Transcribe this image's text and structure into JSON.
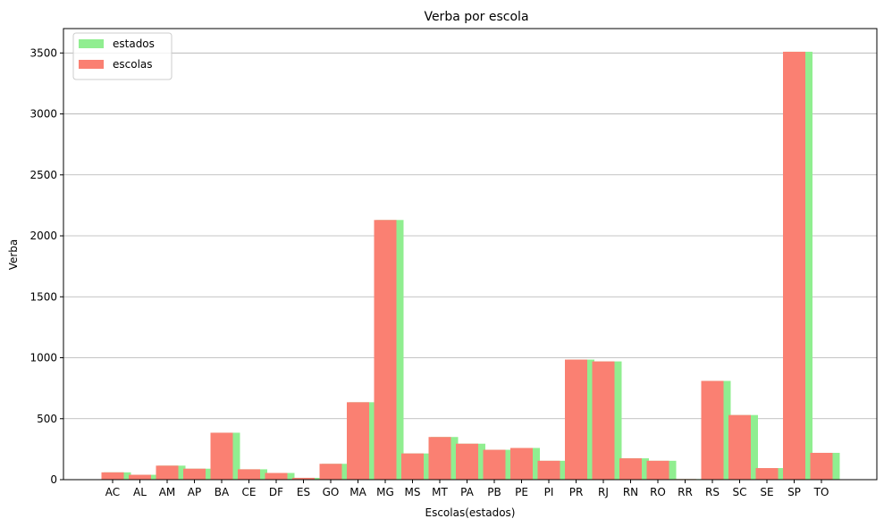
{
  "chart_data": {
    "type": "bar",
    "title": "Verba por escola",
    "xlabel": "Escolas(estados)",
    "ylabel": "Verba",
    "ylim": [
      0,
      3700
    ],
    "yticks": [
      0,
      500,
      1000,
      1500,
      2000,
      2500,
      3000,
      3500
    ],
    "grid": "y",
    "legend": "top-left",
    "categories": [
      "AC",
      "AL",
      "AM",
      "AP",
      "BA",
      "CE",
      "DF",
      "ES",
      "GO",
      "MA",
      "MG",
      "MS",
      "MT",
      "PA",
      "PB",
      "PE",
      "PI",
      "PR",
      "RJ",
      "RN",
      "RO",
      "RR",
      "RS",
      "SC",
      "SE",
      "SP",
      "TO"
    ],
    "series": [
      {
        "name": "estados",
        "color": "#90ee90",
        "values": [
          60,
          40,
          115,
          90,
          385,
          85,
          55,
          15,
          130,
          635,
          2130,
          215,
          350,
          295,
          245,
          260,
          155,
          985,
          970,
          175,
          155,
          5,
          810,
          530,
          95,
          3510,
          220
        ]
      },
      {
        "name": "escolas",
        "color": "#fa8072",
        "values": [
          60,
          40,
          115,
          90,
          385,
          85,
          55,
          15,
          130,
          635,
          2130,
          215,
          350,
          295,
          245,
          260,
          155,
          985,
          970,
          175,
          155,
          5,
          810,
          530,
          95,
          3510,
          220
        ]
      }
    ]
  }
}
